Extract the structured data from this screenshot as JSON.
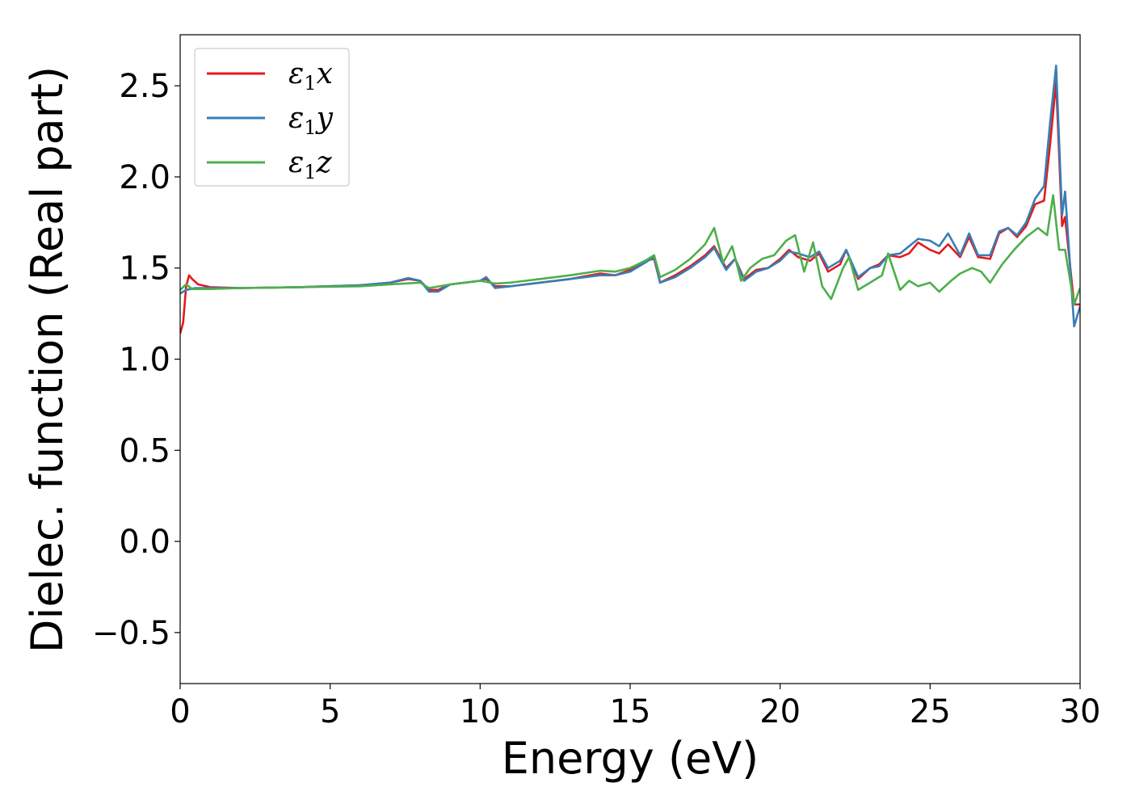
{
  "chart_data": {
    "type": "line",
    "title": "",
    "xlabel": "Energy (eV)",
    "ylabel": "Dielec. function (Real part)",
    "xlim": [
      0,
      30
    ],
    "ylim": [
      -0.78,
      2.78
    ],
    "xticks": [
      0,
      5,
      10,
      15,
      20,
      25,
      30
    ],
    "xtick_labels": [
      "0",
      "5",
      "10",
      "15",
      "20",
      "25",
      "30"
    ],
    "yticks": [
      -0.5,
      0.0,
      0.5,
      1.0,
      1.5,
      2.0,
      2.5
    ],
    "ytick_labels": [
      "−0.5",
      "0.0",
      "0.5",
      "1.0",
      "1.5",
      "2.0",
      "2.5"
    ],
    "grid": false,
    "legend_position": "top-left",
    "series": [
      {
        "legend_symbol": "ε",
        "legend_sub": "1",
        "legend_var": "x",
        "color": "#e41a1c",
        "points": [
          [
            0,
            1.14
          ],
          [
            0.1,
            1.2
          ],
          [
            0.2,
            1.4
          ],
          [
            0.3,
            1.46
          ],
          [
            0.4,
            1.44
          ],
          [
            0.6,
            1.41
          ],
          [
            1,
            1.395
          ],
          [
            2,
            1.39
          ],
          [
            4,
            1.395
          ],
          [
            6,
            1.405
          ],
          [
            7,
            1.42
          ],
          [
            7.6,
            1.44
          ],
          [
            8,
            1.43
          ],
          [
            8.3,
            1.38
          ],
          [
            8.6,
            1.38
          ],
          [
            9,
            1.41
          ],
          [
            10,
            1.43
          ],
          [
            10.2,
            1.44
          ],
          [
            10.5,
            1.4
          ],
          [
            11,
            1.4
          ],
          [
            12,
            1.42
          ],
          [
            13,
            1.44
          ],
          [
            14,
            1.47
          ],
          [
            14.5,
            1.46
          ],
          [
            15,
            1.49
          ],
          [
            15.5,
            1.54
          ],
          [
            15.8,
            1.55
          ],
          [
            16,
            1.42
          ],
          [
            16.5,
            1.46
          ],
          [
            17,
            1.51
          ],
          [
            17.5,
            1.57
          ],
          [
            17.8,
            1.62
          ],
          [
            18.2,
            1.5
          ],
          [
            18.5,
            1.55
          ],
          [
            18.8,
            1.44
          ],
          [
            19.2,
            1.49
          ],
          [
            19.6,
            1.5
          ],
          [
            20,
            1.55
          ],
          [
            20.3,
            1.6
          ],
          [
            20.6,
            1.56
          ],
          [
            21,
            1.54
          ],
          [
            21.3,
            1.58
          ],
          [
            21.6,
            1.48
          ],
          [
            22,
            1.52
          ],
          [
            22.2,
            1.6
          ],
          [
            22.6,
            1.44
          ],
          [
            23,
            1.5
          ],
          [
            23.3,
            1.52
          ],
          [
            23.6,
            1.57
          ],
          [
            24,
            1.56
          ],
          [
            24.3,
            1.58
          ],
          [
            24.6,
            1.64
          ],
          [
            25,
            1.6
          ],
          [
            25.3,
            1.58
          ],
          [
            25.6,
            1.63
          ],
          [
            26,
            1.56
          ],
          [
            26.3,
            1.67
          ],
          [
            26.6,
            1.56
          ],
          [
            27,
            1.55
          ],
          [
            27.3,
            1.69
          ],
          [
            27.6,
            1.72
          ],
          [
            27.9,
            1.67
          ],
          [
            28.2,
            1.73
          ],
          [
            28.5,
            1.85
          ],
          [
            28.8,
            1.87
          ],
          [
            29,
            2.18
          ],
          [
            29.2,
            2.52
          ],
          [
            29.4,
            1.73
          ],
          [
            29.5,
            1.78
          ],
          [
            29.8,
            1.3
          ],
          [
            30,
            1.3
          ]
        ]
      },
      {
        "legend_symbol": "ε",
        "legend_sub": "1",
        "legend_var": "y",
        "color": "#377eb8",
        "points": [
          [
            0,
            1.36
          ],
          [
            0.2,
            1.38
          ],
          [
            0.5,
            1.39
          ],
          [
            1,
            1.39
          ],
          [
            2,
            1.39
          ],
          [
            4,
            1.395
          ],
          [
            6,
            1.405
          ],
          [
            7,
            1.42
          ],
          [
            7.6,
            1.445
          ],
          [
            8,
            1.43
          ],
          [
            8.3,
            1.37
          ],
          [
            8.6,
            1.37
          ],
          [
            9,
            1.41
          ],
          [
            10,
            1.43
          ],
          [
            10.2,
            1.45
          ],
          [
            10.5,
            1.39
          ],
          [
            11,
            1.4
          ],
          [
            12,
            1.42
          ],
          [
            13,
            1.44
          ],
          [
            14,
            1.46
          ],
          [
            14.5,
            1.46
          ],
          [
            15,
            1.48
          ],
          [
            15.5,
            1.53
          ],
          [
            15.8,
            1.56
          ],
          [
            16,
            1.42
          ],
          [
            16.5,
            1.45
          ],
          [
            17,
            1.5
          ],
          [
            17.5,
            1.56
          ],
          [
            17.8,
            1.61
          ],
          [
            18.2,
            1.49
          ],
          [
            18.5,
            1.55
          ],
          [
            18.8,
            1.43
          ],
          [
            19.2,
            1.48
          ],
          [
            19.6,
            1.5
          ],
          [
            20,
            1.54
          ],
          [
            20.3,
            1.59
          ],
          [
            20.6,
            1.58
          ],
          [
            21,
            1.56
          ],
          [
            21.3,
            1.59
          ],
          [
            21.6,
            1.5
          ],
          [
            22,
            1.54
          ],
          [
            22.2,
            1.6
          ],
          [
            22.6,
            1.45
          ],
          [
            23,
            1.5
          ],
          [
            23.3,
            1.51
          ],
          [
            23.6,
            1.57
          ],
          [
            24,
            1.58
          ],
          [
            24.3,
            1.62
          ],
          [
            24.6,
            1.66
          ],
          [
            25,
            1.65
          ],
          [
            25.3,
            1.62
          ],
          [
            25.6,
            1.69
          ],
          [
            26,
            1.57
          ],
          [
            26.3,
            1.69
          ],
          [
            26.6,
            1.57
          ],
          [
            27,
            1.57
          ],
          [
            27.3,
            1.7
          ],
          [
            27.6,
            1.72
          ],
          [
            27.9,
            1.68
          ],
          [
            28.2,
            1.75
          ],
          [
            28.5,
            1.88
          ],
          [
            28.8,
            1.95
          ],
          [
            29,
            2.3
          ],
          [
            29.2,
            2.61
          ],
          [
            29.4,
            1.79
          ],
          [
            29.5,
            1.92
          ],
          [
            29.8,
            1.18
          ],
          [
            30,
            1.29
          ]
        ]
      },
      {
        "legend_symbol": "ε",
        "legend_sub": "1",
        "legend_var": "z",
        "color": "#4daf4a",
        "points": [
          [
            0,
            1.38
          ],
          [
            0.2,
            1.41
          ],
          [
            0.4,
            1.385
          ],
          [
            1,
            1.385
          ],
          [
            2,
            1.39
          ],
          [
            4,
            1.395
          ],
          [
            6,
            1.4
          ],
          [
            7,
            1.41
          ],
          [
            8,
            1.42
          ],
          [
            8.3,
            1.39
          ],
          [
            9,
            1.41
          ],
          [
            10,
            1.43
          ],
          [
            10.5,
            1.415
          ],
          [
            11,
            1.42
          ],
          [
            12,
            1.44
          ],
          [
            13,
            1.46
          ],
          [
            14,
            1.485
          ],
          [
            14.5,
            1.48
          ],
          [
            15,
            1.5
          ],
          [
            15.5,
            1.54
          ],
          [
            15.8,
            1.57
          ],
          [
            16,
            1.45
          ],
          [
            16.5,
            1.49
          ],
          [
            17,
            1.55
          ],
          [
            17.5,
            1.63
          ],
          [
            17.8,
            1.72
          ],
          [
            18.1,
            1.53
          ],
          [
            18.4,
            1.62
          ],
          [
            18.7,
            1.43
          ],
          [
            19,
            1.5
          ],
          [
            19.4,
            1.55
          ],
          [
            19.8,
            1.57
          ],
          [
            20.2,
            1.65
          ],
          [
            20.5,
            1.68
          ],
          [
            20.8,
            1.48
          ],
          [
            21.1,
            1.64
          ],
          [
            21.4,
            1.4
          ],
          [
            21.7,
            1.33
          ],
          [
            22.1,
            1.5
          ],
          [
            22.3,
            1.56
          ],
          [
            22.6,
            1.38
          ],
          [
            23,
            1.42
          ],
          [
            23.4,
            1.46
          ],
          [
            23.6,
            1.58
          ],
          [
            24,
            1.38
          ],
          [
            24.3,
            1.43
          ],
          [
            24.6,
            1.4
          ],
          [
            25,
            1.42
          ],
          [
            25.3,
            1.37
          ],
          [
            25.7,
            1.43
          ],
          [
            26,
            1.47
          ],
          [
            26.4,
            1.5
          ],
          [
            26.7,
            1.48
          ],
          [
            27,
            1.42
          ],
          [
            27.4,
            1.52
          ],
          [
            27.8,
            1.6
          ],
          [
            28.2,
            1.67
          ],
          [
            28.6,
            1.72
          ],
          [
            28.9,
            1.68
          ],
          [
            29.1,
            1.9
          ],
          [
            29.3,
            1.6
          ],
          [
            29.5,
            1.6
          ],
          [
            29.8,
            1.3
          ],
          [
            30,
            1.39
          ]
        ]
      }
    ]
  }
}
